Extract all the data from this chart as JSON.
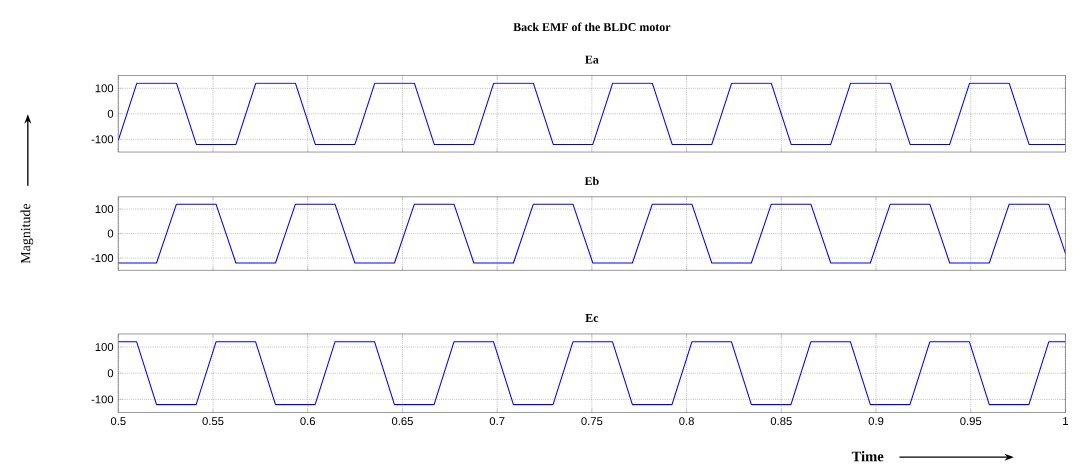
{
  "chart_data": [
    {
      "type": "line",
      "title": "Back EMF of the BLDC motor",
      "subtitle": "Ea",
      "xlim": [
        0.5,
        1
      ],
      "ylim": [
        -150,
        150
      ],
      "xticks": [
        0.5,
        0.55,
        0.6,
        0.65,
        0.7,
        0.75,
        0.8,
        0.85,
        0.9,
        0.95,
        1
      ],
      "yticks": [
        -100,
        0,
        100
      ],
      "grid": true,
      "tick_labels": "y",
      "series": [
        {
          "color": "#0000ff",
          "x": [
            0.5,
            0.5098,
            0.5307,
            0.5412,
            0.5621,
            0.5726,
            0.5935,
            0.604,
            0.6249,
            0.6354,
            0.6563,
            0.6668,
            0.6877,
            0.6982,
            0.7191,
            0.7296,
            0.7505,
            0.761,
            0.7819,
            0.7924,
            0.8133,
            0.8238,
            0.8447,
            0.8552,
            0.8761,
            0.8866,
            0.9075,
            0.918,
            0.9389,
            0.9494,
            0.9703,
            0.9808,
            1.0
          ],
          "values": [
            -104,
            120,
            120,
            -120,
            -120,
            120,
            120,
            -120,
            -120,
            120,
            120,
            -120,
            -120,
            120,
            120,
            -120,
            -120,
            120,
            120,
            -120,
            -120,
            120,
            120,
            -120,
            -120,
            120,
            120,
            -120,
            -120,
            120,
            120,
            -120,
            -120
          ]
        }
      ]
    },
    {
      "type": "line",
      "title": "Eb",
      "ylabel": "Magnitude",
      "xlim": [
        0.5,
        1
      ],
      "ylim": [
        -150,
        150
      ],
      "xticks": [
        0.5,
        0.55,
        0.6,
        0.65,
        0.7,
        0.75,
        0.8,
        0.85,
        0.9,
        0.95,
        1
      ],
      "yticks": [
        -100,
        0,
        100
      ],
      "grid": true,
      "tick_labels": "y",
      "series": [
        {
          "color": "#0000ff",
          "x": [
            0.5,
            0.5202,
            0.5307,
            0.5516,
            0.5621,
            0.583,
            0.5935,
            0.6144,
            0.6249,
            0.6458,
            0.6563,
            0.6772,
            0.6877,
            0.7086,
            0.7191,
            0.74,
            0.7505,
            0.7714,
            0.7819,
            0.8028,
            0.8133,
            0.8342,
            0.8447,
            0.8656,
            0.8761,
            0.897,
            0.9075,
            0.9284,
            0.9389,
            0.9598,
            0.9703,
            0.9912,
            1.0
          ],
          "values": [
            -120,
            -120,
            120,
            120,
            -120,
            -120,
            120,
            120,
            -120,
            -120,
            120,
            120,
            -120,
            -120,
            120,
            120,
            -120,
            -120,
            120,
            120,
            -120,
            -120,
            120,
            120,
            -120,
            -120,
            120,
            120,
            -120,
            -120,
            120,
            120,
            -81
          ]
        }
      ]
    },
    {
      "type": "line",
      "title": "Ec",
      "xlabel": "Time",
      "xlim": [
        0.5,
        1
      ],
      "ylim": [
        -150,
        150
      ],
      "xticks": [
        0.5,
        0.55,
        0.6,
        0.65,
        0.7,
        0.75,
        0.8,
        0.85,
        0.9,
        0.95,
        1
      ],
      "yticks": [
        -100,
        0,
        100
      ],
      "grid": true,
      "series": [
        {
          "color": "#0000ff",
          "x": [
            0.5,
            0.5097,
            0.5202,
            0.5411,
            0.5516,
            0.5725,
            0.583,
            0.6039,
            0.6144,
            0.6353,
            0.6458,
            0.6667,
            0.6772,
            0.6981,
            0.7086,
            0.7295,
            0.74,
            0.7609,
            0.7714,
            0.7923,
            0.8028,
            0.8237,
            0.8342,
            0.8551,
            0.8656,
            0.8865,
            0.897,
            0.9179,
            0.9284,
            0.9493,
            0.9598,
            0.9807,
            0.9912,
            1.0
          ],
          "values": [
            120,
            120,
            -120,
            -120,
            120,
            120,
            -120,
            -120,
            120,
            120,
            -120,
            -120,
            120,
            120,
            -120,
            -120,
            120,
            120,
            -120,
            -120,
            120,
            120,
            -120,
            -120,
            120,
            120,
            -120,
            -120,
            120,
            120,
            -120,
            -120,
            120,
            120
          ]
        }
      ]
    }
  ]
}
